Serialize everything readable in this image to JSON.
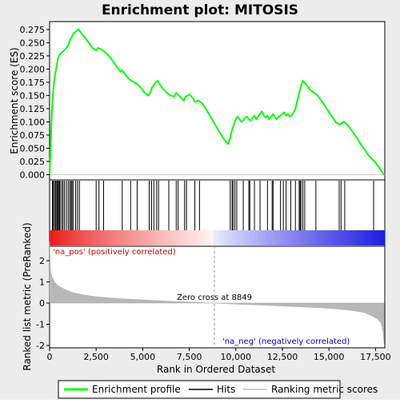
{
  "chart_data": {
    "type": "line",
    "title": "Enrichment plot: MITOSIS",
    "xlabel": "Rank in Ordered Dataset",
    "xlim": [
      0,
      18000
    ],
    "x_ticks": [
      0,
      2500,
      5000,
      7500,
      10000,
      12500,
      15000,
      17500
    ],
    "x_tick_labels": [
      "0",
      "2,500",
      "5,000",
      "7,500",
      "10,000",
      "12,500",
      "15,000",
      "17,500"
    ],
    "es_panel": {
      "ylabel": "Enrichment score (ES)",
      "ylim": [
        -0.01,
        0.29
      ],
      "y_ticks": [
        0.0,
        0.025,
        0.05,
        0.075,
        0.1,
        0.125,
        0.15,
        0.175,
        0.2,
        0.225,
        0.25,
        0.275
      ],
      "y_tick_labels": [
        "0.000",
        "0.025",
        "0.050",
        "0.075",
        "0.100",
        "0.125",
        "0.150",
        "0.175",
        "0.200",
        "0.225",
        "0.250",
        "0.275"
      ],
      "series": [
        {
          "name": "Enrichment profile",
          "color": "#00ff00",
          "x": [
            0,
            40,
            80,
            120,
            160,
            200,
            250,
            300,
            350,
            400,
            450,
            500,
            600,
            700,
            800,
            900,
            1000,
            1100,
            1200,
            1300,
            1450,
            1550,
            1700,
            2000,
            2300,
            2500,
            2600,
            2750,
            3000,
            3300,
            3600,
            3800,
            3900,
            4100,
            4300,
            4500,
            4700,
            4900,
            5100,
            5300,
            5400,
            5500,
            5600,
            5700,
            5800,
            5900,
            6100,
            6300,
            6500,
            6700,
            6800,
            7000,
            7200,
            7300,
            7500,
            7700,
            7800,
            8000,
            8200,
            8500,
            8800,
            9100,
            9400,
            9600,
            9700,
            9800,
            9900,
            10000,
            10100,
            10200,
            10300,
            10400,
            10500,
            10600,
            10700,
            10800,
            10900,
            11000,
            11100,
            11200,
            11300,
            11400,
            11500,
            11600,
            11700,
            11800,
            11900,
            12000,
            12100,
            12200,
            12300,
            12400,
            12500,
            12600,
            12700,
            12800,
            12900,
            13000,
            13100,
            13200,
            13300,
            13400,
            13500,
            13600,
            13800,
            14000,
            14200,
            14400,
            14600,
            14800,
            15000,
            15200,
            15400,
            15600,
            15700,
            15800,
            15900,
            16100,
            16300,
            16500,
            16700,
            16900,
            17100,
            17300,
            17450,
            17600,
            17800,
            17950
          ],
          "values": [
            0.0,
            0.035,
            0.08,
            0.115,
            0.14,
            0.16,
            0.18,
            0.19,
            0.2,
            0.21,
            0.22,
            0.225,
            0.23,
            0.233,
            0.236,
            0.24,
            0.245,
            0.255,
            0.262,
            0.268,
            0.272,
            0.276,
            0.268,
            0.255,
            0.24,
            0.235,
            0.24,
            0.238,
            0.232,
            0.22,
            0.205,
            0.195,
            0.198,
            0.188,
            0.18,
            0.176,
            0.172,
            0.165,
            0.155,
            0.15,
            0.155,
            0.165,
            0.17,
            0.175,
            0.178,
            0.172,
            0.162,
            0.155,
            0.15,
            0.148,
            0.155,
            0.148,
            0.14,
            0.148,
            0.152,
            0.145,
            0.138,
            0.14,
            0.135,
            0.118,
            0.1,
            0.082,
            0.065,
            0.058,
            0.07,
            0.085,
            0.095,
            0.105,
            0.11,
            0.105,
            0.1,
            0.102,
            0.108,
            0.11,
            0.105,
            0.102,
            0.108,
            0.112,
            0.105,
            0.11,
            0.115,
            0.12,
            0.112,
            0.108,
            0.112,
            0.105,
            0.11,
            0.115,
            0.108,
            0.105,
            0.11,
            0.112,
            0.115,
            0.118,
            0.112,
            0.115,
            0.11,
            0.112,
            0.118,
            0.125,
            0.14,
            0.155,
            0.168,
            0.178,
            0.17,
            0.16,
            0.155,
            0.15,
            0.14,
            0.13,
            0.118,
            0.108,
            0.098,
            0.095,
            0.098,
            0.1,
            0.098,
            0.09,
            0.08,
            0.07,
            0.058,
            0.048,
            0.038,
            0.03,
            0.025,
            0.018,
            0.008,
            0.0
          ]
        }
      ]
    },
    "hits": {
      "name": "Hits",
      "color": "#000000",
      "x": [
        150,
        200,
        260,
        320,
        380,
        420,
        470,
        520,
        560,
        650,
        720,
        800,
        900,
        1000,
        1080,
        1150,
        1200,
        1260,
        1400,
        1500,
        1600,
        2500,
        2650,
        2900,
        3900,
        4350,
        4700,
        5350,
        5480,
        5600,
        5750,
        5850,
        6400,
        6800,
        6900,
        7250,
        7350,
        7800,
        8050,
        9700,
        9800,
        9850,
        9950,
        10050,
        10400,
        10700,
        10750,
        11000,
        11300,
        11700,
        11950,
        12000,
        12400,
        12550,
        12700,
        12950,
        13200,
        13400,
        13450,
        13500,
        13600,
        13700,
        14300,
        15550,
        15650,
        15850,
        17400
      ]
    },
    "rank_metric": {
      "name": "Ranking metric scores",
      "ylabel": "Ranked list metric (PreRanked)",
      "ylim": [
        -2,
        3
      ],
      "y_ticks": [
        -2,
        -1,
        0,
        1,
        2
      ],
      "y_tick_labels": [
        "-2",
        "-1",
        "0",
        "1",
        "2"
      ],
      "x": [
        0,
        50,
        150,
        300,
        500,
        800,
        1200,
        1800,
        2500,
        3500,
        5000,
        6500,
        8000,
        8849,
        10000,
        11500,
        13000,
        14500,
        15500,
        16300,
        16900,
        17300,
        17600,
        17800,
        17900,
        17960
      ],
      "values": [
        2.9,
        1.5,
        1.2,
        0.95,
        0.8,
        0.65,
        0.5,
        0.38,
        0.3,
        0.22,
        0.15,
        0.08,
        0.03,
        0.0,
        -0.05,
        -0.1,
        -0.16,
        -0.22,
        -0.28,
        -0.36,
        -0.45,
        -0.6,
        -0.75,
        -0.95,
        -1.3,
        -1.9
      ]
    },
    "zero_cross_label": "Zero cross at 8849",
    "zero_cross_x": 8849,
    "pos_label": "'na_pos' (positively correlated)",
    "neg_label": "'na_neg' (negatively correlated)",
    "legend": {
      "placement": "bottom",
      "entries": [
        {
          "label": "Enrichment profile",
          "color": "#00ff00"
        },
        {
          "label": "Hits",
          "color": "#000000"
        },
        {
          "label": "Ranking metric scores",
          "color": "#c0c0c0"
        }
      ]
    },
    "grid": false
  }
}
